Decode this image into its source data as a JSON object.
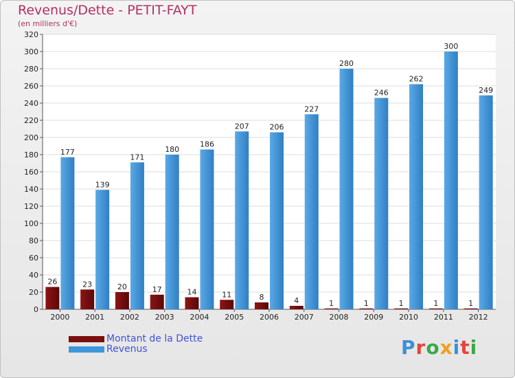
{
  "title": "Revenus/Dette - PETIT-FAYT",
  "subtitle": "(en milliers d'€)",
  "colors": {
    "dette": "#7a0f0f",
    "revenus": "#3d97dc",
    "title": "#b3305f",
    "legend_text": "#3f52d8"
  },
  "legend": {
    "dette_label": "Montant de la Dette",
    "revenus_label": "Revenus"
  },
  "logo": {
    "text": "Proxiti",
    "letter_colors": [
      "#3d8fd8",
      "#e2453b",
      "#3aa84a",
      "#f0a020",
      "#3d8fd8",
      "#e2453b",
      "#3aa84a"
    ]
  },
  "chart_data": {
    "type": "bar",
    "title": "Revenus/Dette - PETIT-FAYT",
    "ylabel": "(en milliers d'€)",
    "categories": [
      "2000",
      "2001",
      "2002",
      "2003",
      "2004",
      "2005",
      "2006",
      "2007",
      "2008",
      "2009",
      "2010",
      "2011",
      "2012"
    ],
    "series": [
      {
        "name": "Montant de la Dette",
        "values": [
          26,
          23,
          20,
          17,
          14,
          11,
          8,
          4,
          1,
          1,
          1,
          1,
          1
        ]
      },
      {
        "name": "Revenus",
        "values": [
          177,
          139,
          171,
          180,
          186,
          207,
          206,
          227,
          280,
          246,
          262,
          300,
          249
        ]
      }
    ],
    "ylim": [
      0,
      320
    ],
    "yticks": [
      0,
      20,
      40,
      60,
      80,
      100,
      120,
      140,
      160,
      180,
      200,
      220,
      240,
      260,
      280,
      300,
      320
    ],
    "grid": true,
    "legend_position": "bottom-left"
  }
}
